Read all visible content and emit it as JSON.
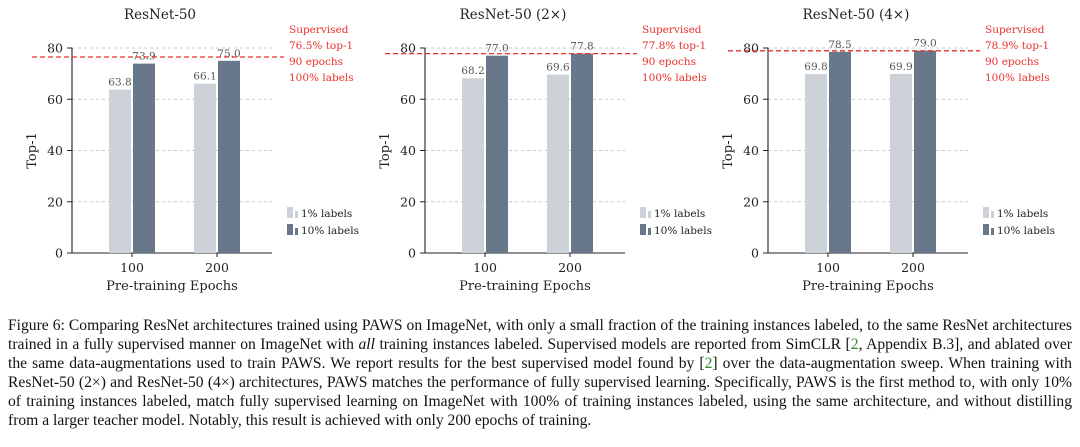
{
  "figure": {
    "colors": {
      "bar_1pct": "#cdd1d8",
      "bar_10pct": "#68778a",
      "supervised": "#e8312b",
      "grid": "#b9b9b9",
      "text": "#222222"
    },
    "legend": [
      "1% labels",
      "10% labels"
    ]
  },
  "chart_data": [
    {
      "type": "bar",
      "title": "ResNet-50",
      "xlabel": "Pre-training Epochs",
      "ylabel": "Top-1",
      "categories": [
        "100",
        "200"
      ],
      "series": [
        {
          "name": "1% labels",
          "values": [
            63.8,
            66.1
          ],
          "labels": [
            "63.8",
            "66.1"
          ]
        },
        {
          "name": "10% labels",
          "values": [
            73.9,
            75.0
          ],
          "labels": [
            "73.9",
            "75.0"
          ]
        }
      ],
      "ylim": [
        0,
        80
      ],
      "yticks": [
        0,
        20,
        40,
        60,
        80
      ],
      "grid": true,
      "legend_position": "bottom-right",
      "reference_line": {
        "value": 76.5,
        "label": [
          "Supervised",
          "76.5% top-1",
          "90 epochs",
          "100% labels"
        ]
      }
    },
    {
      "type": "bar",
      "title": "ResNet-50 (2×)",
      "xlabel": "Pre-training Epochs",
      "ylabel": "Top-1",
      "categories": [
        "100",
        "200"
      ],
      "series": [
        {
          "name": "1% labels",
          "values": [
            68.2,
            69.6
          ],
          "labels": [
            "68.2",
            "69.6"
          ]
        },
        {
          "name": "10% labels",
          "values": [
            77.0,
            77.8
          ],
          "labels": [
            "77.0",
            "77.8"
          ]
        }
      ],
      "ylim": [
        0,
        80
      ],
      "yticks": [
        0,
        20,
        40,
        60,
        80
      ],
      "grid": true,
      "legend_position": "bottom-right",
      "reference_line": {
        "value": 77.8,
        "label": [
          "Supervised",
          "77.8% top-1",
          "90 epochs",
          "100% labels"
        ]
      }
    },
    {
      "type": "bar",
      "title": "ResNet-50 (4×)",
      "xlabel": "Pre-training Epochs",
      "ylabel": "Top-1",
      "categories": [
        "100",
        "200"
      ],
      "series": [
        {
          "name": "1% labels",
          "values": [
            69.8,
            69.9
          ],
          "labels": [
            "69.8",
            "69.9"
          ]
        },
        {
          "name": "10% labels",
          "values": [
            78.5,
            79.0
          ],
          "labels": [
            "78.5",
            "79.0"
          ]
        }
      ],
      "ylim": [
        0,
        80
      ],
      "yticks": [
        0,
        20,
        40,
        60,
        80
      ],
      "grid": true,
      "legend_position": "bottom-right",
      "reference_line": {
        "value": 78.9,
        "label": [
          "Supervised",
          "78.9% top-1",
          "90 epochs",
          "100% labels"
        ]
      }
    }
  ],
  "caption": {
    "t1": "Figure 6: Comparing ResNet architectures trained using ",
    "paws1": "PAWS",
    "t2": " on ImageNet, with only a small fraction of the training instances labeled, to the same ResNet architectures trained in a fully supervised manner on ImageNet with ",
    "all": "all",
    "t3": " training instances labeled. Supervised models are reported from SimCLR [",
    "ref1": "2",
    "t4": ", Appendix B.3], and ablated over the same data-augmentations used to train ",
    "paws2": "PAWS",
    "t5": ". We report results for the best supervised model found by [",
    "ref2": "2",
    "t6": "] over the data-augmentation sweep. When training with ResNet-50 (2×) and ResNet-50 (4×) architectures, ",
    "paws3": "PAWS",
    "t7": " matches the performance of fully supervised learning. Specifically, ",
    "paws4": "PAWS",
    "t8": " is the first method to, with only 10% of training instances labeled, match fully supervised learning on ImageNet with 100% of training instances labeled, using the same architecture, and without distilling from a larger teacher model. Notably, this result is achieved with only 200 epochs of training."
  }
}
